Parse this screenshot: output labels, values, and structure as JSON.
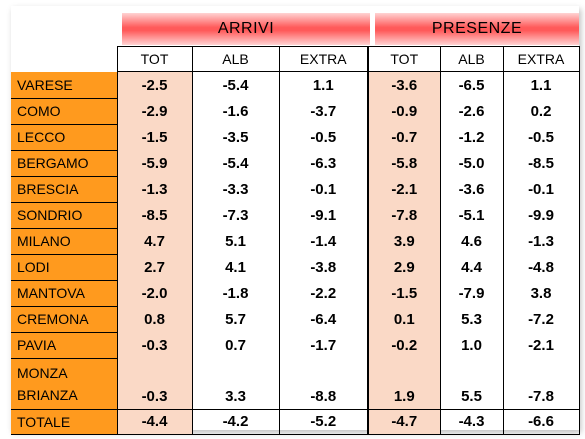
{
  "groups": {
    "arrivi": "ARRIVI",
    "presenze": "PRESENZE"
  },
  "columns": [
    "TOT",
    "ALB",
    "EXTRA",
    "TOT",
    "ALB",
    "EXTRA"
  ],
  "rows": [
    {
      "name": "VARESE",
      "values": [
        "-2.5",
        "-5.4",
        "1.1",
        "-3.6",
        "-6.5",
        "1.1"
      ]
    },
    {
      "name": "COMO",
      "values": [
        "-2.9",
        "-1.6",
        "-3.7",
        "-0.9",
        "-2.6",
        "0.2"
      ]
    },
    {
      "name": "LECCO",
      "values": [
        "-1.5",
        "-3.5",
        "-0.5",
        "-0.7",
        "-1.2",
        "-0.5"
      ]
    },
    {
      "name": "BERGAMO",
      "values": [
        "-5.9",
        "-5.4",
        "-6.3",
        "-5.8",
        "-5.0",
        "-8.5"
      ]
    },
    {
      "name": "BRESCIA",
      "values": [
        "-1.3",
        "-3.3",
        "-0.1",
        "-2.1",
        "-3.6",
        "-0.1"
      ]
    },
    {
      "name": "SONDRIO",
      "values": [
        "-8.5",
        "-7.3",
        "-9.1",
        "-7.8",
        "-5.1",
        "-9.9"
      ]
    },
    {
      "name": "MILANO",
      "values": [
        "4.7",
        "5.1",
        "-1.4",
        "3.9",
        "4.6",
        "-1.3"
      ]
    },
    {
      "name": "LODI",
      "values": [
        "2.7",
        "4.1",
        "-3.8",
        "2.9",
        "4.4",
        "-4.8"
      ]
    },
    {
      "name": "MANTOVA",
      "values": [
        "-2.0",
        "-1.8",
        "-2.2",
        "-1.5",
        "-7.9",
        "3.8"
      ]
    },
    {
      "name": "CREMONA",
      "values": [
        "0.8",
        "5.7",
        "-6.4",
        "0.1",
        "5.3",
        "-7.2"
      ]
    },
    {
      "name": "PAVIA",
      "values": [
        "-0.3",
        "0.7",
        "-1.7",
        "-0.2",
        "1.0",
        "-2.1"
      ]
    },
    {
      "name_line1": "MONZA",
      "name_line2": "BRIANZA",
      "values": [
        "-0.3",
        "3.3",
        "-8.8",
        "1.9",
        "5.5",
        "-7.8"
      ]
    }
  ],
  "total": {
    "name": "TOTALE",
    "values": [
      "-4.4",
      "-4.2",
      "-5.2",
      "-4.7",
      "-4.3",
      "-6.6"
    ]
  },
  "colors": {
    "province_fill": "#ff9a1e",
    "tot_fill": "#fad9c6",
    "band": "#ff5a5a"
  }
}
